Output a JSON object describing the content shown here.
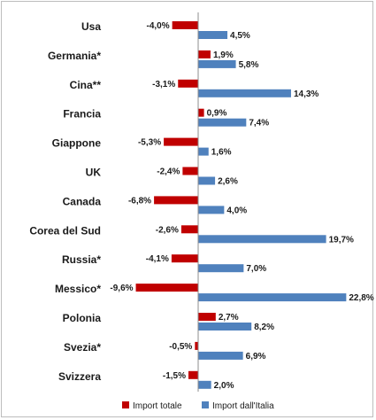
{
  "chart_data": {
    "type": "bar",
    "orientation": "horizontal",
    "categories": [
      "Usa",
      "Germania*",
      "Cina**",
      "Francia",
      "Giappone",
      "UK",
      "Canada",
      "Corea del Sud",
      "Russia*",
      "Messico*",
      "Polonia",
      "Svezia*",
      "Svizzera"
    ],
    "series": [
      {
        "name": "Import totale",
        "color": "#c00000",
        "values": [
          -4.0,
          1.9,
          -3.1,
          0.9,
          -5.3,
          -2.4,
          -6.8,
          -2.6,
          -4.1,
          -9.6,
          2.7,
          -0.5,
          -1.5
        ],
        "labels": [
          "-4,0%",
          "1,9%",
          "-3,1%",
          "0,9%",
          "-5,3%",
          "-2,4%",
          "-6,8%",
          "-2,6%",
          "-4,1%",
          "-9,6%",
          "2,7%",
          "-0,5%",
          "-1,5%"
        ]
      },
      {
        "name": "Import dall'Italia",
        "color": "#4f81bd",
        "values": [
          4.5,
          5.8,
          14.3,
          7.4,
          1.6,
          2.6,
          4.0,
          19.7,
          7.0,
          22.8,
          8.2,
          6.9,
          2.0
        ],
        "labels": [
          "4,5%",
          "5,8%",
          "14,3%",
          "7,4%",
          "1,6%",
          "2,6%",
          "4,0%",
          "19,7%",
          "7,0%",
          "22,8%",
          "8,2%",
          "6,9%",
          "2,0%"
        ]
      }
    ],
    "legend_position": "bottom",
    "grid": false
  }
}
